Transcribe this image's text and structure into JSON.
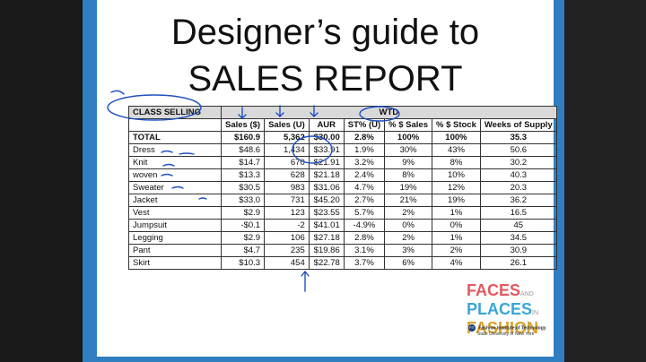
{
  "slide": {
    "title_line1": "Designer’s guide to",
    "title_line2": "SALES REPORT"
  },
  "table": {
    "group_header": "CLASS SELLING",
    "period_header": "WTD",
    "columns": [
      "Sales ($)",
      "Sales (U)",
      "AUR",
      "ST% (U)",
      "% $ Sales",
      "% $ Stock",
      "Weeks of Supply"
    ],
    "total": [
      "TOTAL",
      "$160.9",
      "5,362",
      "$30.00",
      "2.8%",
      "100%",
      "100%",
      "35.3"
    ],
    "rows": [
      [
        "Dress",
        "$48.6",
        "1,434",
        "$33.91",
        "1.9%",
        "30%",
        "43%",
        "50.6"
      ],
      [
        "Knit",
        "$14.7",
        "670",
        "$21.91",
        "3.2%",
        "9%",
        "8%",
        "30.2"
      ],
      [
        "woven",
        "$13.3",
        "628",
        "$21.18",
        "2.4%",
        "8%",
        "10%",
        "40.3"
      ],
      [
        "Sweater",
        "$30.5",
        "983",
        "$31.06",
        "4.7%",
        "19%",
        "12%",
        "20.3"
      ],
      [
        "Jacket",
        "$33.0",
        "731",
        "$45.20",
        "2.7%",
        "21%",
        "19%",
        "36.2"
      ],
      [
        "Vest",
        "$2.9",
        "123",
        "$23.55",
        "5.7%",
        "2%",
        "1%",
        "16.5"
      ],
      [
        "Jumpsuit",
        "-$0.1",
        "-2",
        "$41.01",
        "-4.9%",
        "0%",
        "0%",
        "45"
      ],
      [
        "Legging",
        "$2.9",
        "106",
        "$27.18",
        "2.8%",
        "2%",
        "1%",
        "34.5"
      ],
      [
        "Pant",
        "$4.7",
        "235",
        "$19.86",
        "3.1%",
        "3%",
        "2%",
        "30.9"
      ],
      [
        "Skirt",
        "$10.3",
        "454",
        "$22.78",
        "3.7%",
        "6%",
        "4%",
        "26.1"
      ]
    ]
  },
  "logo": {
    "word1": "FACES",
    "word1_small": "AND",
    "word2": "PLACES",
    "word2_small": "IN",
    "word3": "FASHION",
    "institution": "Fashion Institute of Technology",
    "institution_sub": "State University of New York",
    "badge": "FIT"
  },
  "colors": {
    "border_blue": "#2f7fc0",
    "ink_blue": "#1f4fbf",
    "faces_red": "#e05a5f",
    "places_blue": "#3aa6d8",
    "fashion_gold": "#d7a12a",
    "header_gray": "#d9d9d9"
  }
}
